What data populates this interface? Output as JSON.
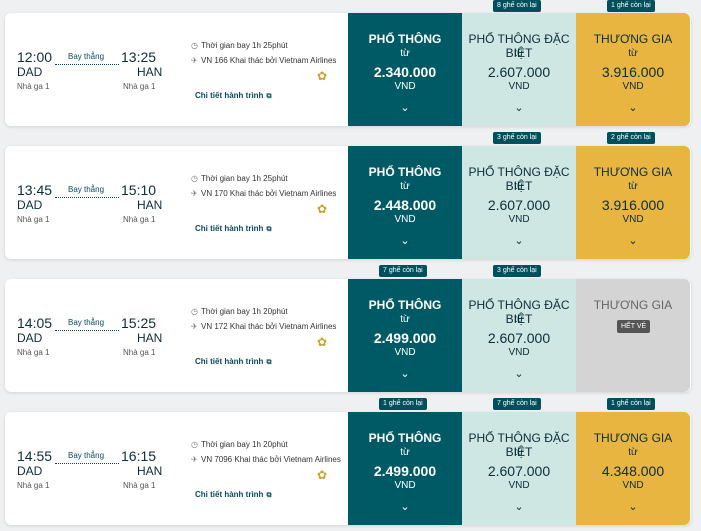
{
  "colors": {
    "economy": "#005a66",
    "deluxe": "#cfe7e2",
    "business": "#e7b540",
    "sold_out": "#d4d4d4",
    "seat_badge": "#004f5c"
  },
  "labels": {
    "economy": "PHỔ THÔNG",
    "deluxe": "PHỔ THÔNG ĐẶC BIỆT",
    "business": "THƯƠNG GIA",
    "from": "từ",
    "currency": "VND",
    "nonstop": "Bay thẳng",
    "terminal": "Nhà ga 1",
    "details_link": "Chi tiết hành trình",
    "sold_out": "HẾT VÉ",
    "chevron_glyph": "⌄",
    "plane_glyph": "✈",
    "clock_glyph": "◷",
    "logo_glyph": "✿"
  },
  "flights": [
    {
      "dep_time": "12:00",
      "dep_code": "DAD",
      "arr_time": "13:25",
      "arr_code": "HAN",
      "duration": "Thời gian bay 1h 25phút",
      "operator": "VN 166 Khai thác bởi Vietnam Airlines",
      "economy_price": "2.340.000",
      "deluxe_price": "2.607.000",
      "business_price": "3.916.000",
      "economy_seats": "",
      "deluxe_seats": "8 ghế còn lại",
      "business_seats": "1 ghế còn lại"
    },
    {
      "dep_time": "13:45",
      "dep_code": "DAD",
      "arr_time": "15:10",
      "arr_code": "HAN",
      "duration": "Thời gian bay 1h 25phút",
      "operator": "VN 170 Khai thác bởi Vietnam Airlines",
      "economy_price": "2.448.000",
      "deluxe_price": "2.607.000",
      "business_price": "3.916.000",
      "economy_seats": "",
      "deluxe_seats": "3 ghế còn lại",
      "business_seats": "2 ghế còn lại"
    },
    {
      "dep_time": "14:05",
      "dep_code": "DAD",
      "arr_time": "15:25",
      "arr_code": "HAN",
      "duration": "Thời gian bay 1h 20phút",
      "operator": "VN 172 Khai thác bởi Vietnam Airlines",
      "economy_price": "2.499.000",
      "deluxe_price": "2.607.000",
      "business_price": "",
      "economy_seats": "7 ghế còn lại",
      "deluxe_seats": "3 ghế còn lại",
      "business_seats": ""
    },
    {
      "dep_time": "14:55",
      "dep_code": "DAD",
      "arr_time": "16:15",
      "arr_code": "HAN",
      "duration": "Thời gian bay 1h 20phút",
      "operator": "VN 7096 Khai thác bởi Vietnam Airlines",
      "economy_price": "2.499.000",
      "deluxe_price": "2.607.000",
      "business_price": "4.348.000",
      "economy_seats": "1 ghế còn lại",
      "deluxe_seats": "7 ghế còn lại",
      "business_seats": "1 ghế còn lại"
    }
  ]
}
